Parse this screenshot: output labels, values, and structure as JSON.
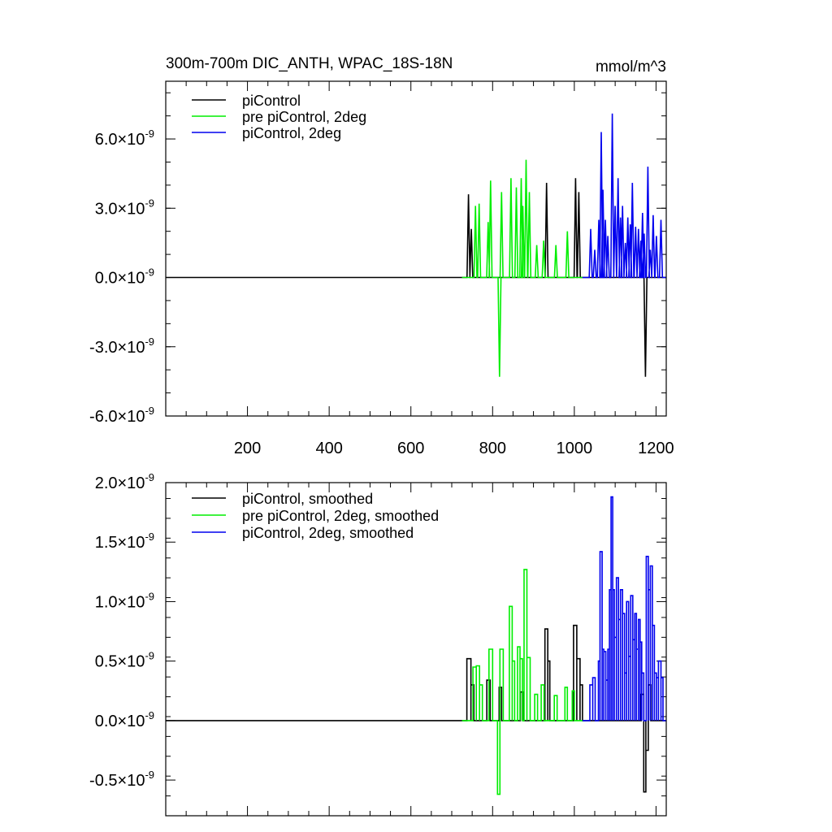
{
  "chart_data": [
    {
      "type": "line",
      "title": "300m-700m DIC_ANTH, WPAC_18S-18N",
      "units": "mmol/m^3",
      "xlim": [
        0,
        1225
      ],
      "ylim": [
        -6e-09,
        8.5e-09
      ],
      "x_ticks": [
        200,
        400,
        600,
        800,
        1000,
        1200
      ],
      "x_tick_labels": [
        "200",
        "400",
        "600",
        "800",
        "1000",
        "1200"
      ],
      "y_ticks": [
        6e-09,
        3e-09,
        0,
        -3e-09,
        -6e-09
      ],
      "y_tick_mantissas": [
        "6.0",
        "3.0",
        "0.0",
        "-3.0",
        "-6.0"
      ],
      "y_tick_exponent": "-9",
      "times_sign": "×",
      "tick_base": "10",
      "legend_position": "top-left",
      "series": [
        {
          "name": "piControl",
          "color": "#000000",
          "baseline": [
            0,
            1225
          ],
          "spikes": [
            [
              741,
              3.6e-09
            ],
            [
              748,
              2.1e-09
            ],
            [
              932,
              4.1e-09
            ],
            [
              1003,
              4.3e-09
            ],
            [
              1011,
              3.7e-09
            ],
            [
              1174,
              -4.3e-09
            ]
          ]
        },
        {
          "name": "pre piControl, 2deg",
          "color": "#00ee00",
          "baseline": [
            725,
            1020
          ],
          "spikes": [
            [
              758,
              3.1e-09
            ],
            [
              767,
              3.2e-09
            ],
            [
              789,
              2.4e-09
            ],
            [
              795,
              4.2e-09
            ],
            [
              817,
              -4.3e-09
            ],
            [
              822,
              3.7e-09
            ],
            [
              845,
              4.3e-09
            ],
            [
              858,
              3.9e-09
            ],
            [
              870,
              4.3e-09
            ],
            [
              874,
              3.1e-09
            ],
            [
              882,
              5.1e-09
            ],
            [
              890,
              3.7e-09
            ],
            [
              908,
              1.4e-09
            ],
            [
              925,
              1.6e-09
            ],
            [
              955,
              1.4e-09
            ],
            [
              983,
              2e-09
            ]
          ]
        },
        {
          "name": "piControl, 2deg",
          "color": "#0000ee",
          "baseline": [
            1020,
            1225
          ],
          "spikes": [
            [
              1040,
              2.1e-09
            ],
            [
              1050,
              1.2e-09
            ],
            [
              1060,
              2.5e-09
            ],
            [
              1066,
              6.3e-09
            ],
            [
              1070,
              3.8e-09
            ],
            [
              1076,
              2.5e-09
            ],
            [
              1082,
              1.8e-09
            ],
            [
              1093,
              7.1e-09
            ],
            [
              1100,
              3.1e-09
            ],
            [
              1107,
              4.3e-09
            ],
            [
              1113,
              2.6e-09
            ],
            [
              1118,
              3.1e-09
            ],
            [
              1125,
              1.5e-09
            ],
            [
              1131,
              2.6e-09
            ],
            [
              1137,
              2.3e-09
            ],
            [
              1142,
              4.1e-09
            ],
            [
              1150,
              2.2e-09
            ],
            [
              1157,
              2.1e-09
            ],
            [
              1163,
              1.6e-09
            ],
            [
              1167,
              2.8e-09
            ],
            [
              1171,
              1.9e-09
            ],
            [
              1180,
              4.8e-09
            ],
            [
              1186,
              1.2e-09
            ],
            [
              1193,
              2.7e-09
            ],
            [
              1201,
              1.8e-09
            ],
            [
              1212,
              2.5e-09
            ]
          ]
        }
      ]
    },
    {
      "type": "line",
      "xlim": [
        0,
        1225
      ],
      "ylim": [
        -8e-10,
        2e-09
      ],
      "x_ticks": [
        200,
        400,
        600,
        800,
        1000,
        1200
      ],
      "y_ticks": [
        2e-09,
        1.5e-09,
        1e-09,
        5e-10,
        0,
        -5e-10
      ],
      "y_tick_mantissas": [
        "2.0",
        "1.5",
        "1.0",
        "0.5",
        "0.0",
        "-0.5"
      ],
      "y_tick_exponent": "-9",
      "times_sign": "×",
      "tick_base": "10",
      "legend_position": "top-left",
      "series": [
        {
          "name": "piControl, smoothed",
          "color": "#000000",
          "baseline": [
            0,
            1225
          ],
          "steps": [
            [
              737,
              747,
              5.2e-10
            ],
            [
              747,
              754,
              3e-10
            ],
            [
              786,
              794,
              3.4e-10
            ],
            [
              816,
              822,
              2.8e-10
            ],
            [
              868,
              875,
              2.4e-10
            ],
            [
              928,
              935,
              7.7e-10
            ],
            [
              935,
              940,
              5e-10
            ],
            [
              998,
              1006,
              8e-10
            ],
            [
              1006,
              1014,
              5.2e-10
            ],
            [
              1014,
              1020,
              3e-10
            ],
            [
              1164,
              1170,
              2.2e-10
            ],
            [
              1170,
              1175,
              -6e-10
            ],
            [
              1175,
              1181,
              -2.5e-10
            ],
            [
              1181,
              1187,
              3e-10
            ]
          ]
        },
        {
          "name": "pre piControl, 2deg, smoothed",
          "color": "#00ee00",
          "baseline": [
            725,
            1020
          ],
          "steps": [
            [
              752,
              760,
              4.5e-10
            ],
            [
              760,
              768,
              4.6e-10
            ],
            [
              768,
              775,
              3e-10
            ],
            [
              791,
              800,
              6e-10
            ],
            [
              812,
              818,
              -6.2e-10
            ],
            [
              818,
              826,
              6e-10
            ],
            [
              841,
              848,
              9.6e-10
            ],
            [
              848,
              854,
              5e-10
            ],
            [
              861,
              867,
              6.2e-10
            ],
            [
              867,
              873,
              5.2e-10
            ],
            [
              877,
              884,
              1.27e-09
            ],
            [
              884,
              892,
              5.3e-10
            ],
            [
              903,
              910,
              2.2e-10
            ],
            [
              919,
              926,
              3e-10
            ],
            [
              951,
              958,
              2.1e-10
            ],
            [
              977,
              983,
              2.8e-10
            ],
            [
              995,
              1000,
              2.5e-10
            ]
          ]
        },
        {
          "name": "piControl, 2deg, smoothed",
          "color": "#0000ee",
          "baseline": [
            1020,
            1225
          ],
          "steps": [
            [
              1038,
              1045,
              3e-10
            ],
            [
              1045,
              1051,
              3.6e-10
            ],
            [
              1059,
              1063,
              5e-10
            ],
            [
              1063,
              1068,
              1.42e-09
            ],
            [
              1068,
              1072,
              6e-10
            ],
            [
              1072,
              1077,
              5.8e-10
            ],
            [
              1077,
              1082,
              3.4e-10
            ],
            [
              1082,
              1086,
              6e-10
            ],
            [
              1086,
              1090,
              1.1e-09
            ],
            [
              1090,
              1094,
              1.88e-09
            ],
            [
              1094,
              1098,
              1.1e-09
            ],
            [
              1098,
              1103,
              7e-10
            ],
            [
              1103,
              1108,
              1.2e-09
            ],
            [
              1108,
              1113,
              8.5e-10
            ],
            [
              1113,
              1118,
              1.1e-09
            ],
            [
              1118,
              1123,
              9e-10
            ],
            [
              1123,
              1128,
              4e-10
            ],
            [
              1128,
              1133,
              1e-09
            ],
            [
              1133,
              1138,
              5.4e-10
            ],
            [
              1138,
              1143,
              1.05e-09
            ],
            [
              1143,
              1148,
              6.8e-10
            ],
            [
              1148,
              1152,
              9e-10
            ],
            [
              1152,
              1157,
              6e-10
            ],
            [
              1157,
              1161,
              8.5e-10
            ],
            [
              1161,
              1165,
              6.6e-10
            ],
            [
              1165,
              1170,
              4e-10
            ],
            [
              1176,
              1181,
              1.38e-09
            ],
            [
              1181,
              1186,
              1.1e-09
            ],
            [
              1186,
              1191,
              1.3e-09
            ],
            [
              1191,
              1196,
              8e-10
            ],
            [
              1196,
              1201,
              4e-10
            ],
            [
              1201,
              1206,
              3.6e-10
            ],
            [
              1206,
              1212,
              5e-10
            ],
            [
              1212,
              1217,
              3.6e-10
            ]
          ]
        }
      ]
    }
  ]
}
